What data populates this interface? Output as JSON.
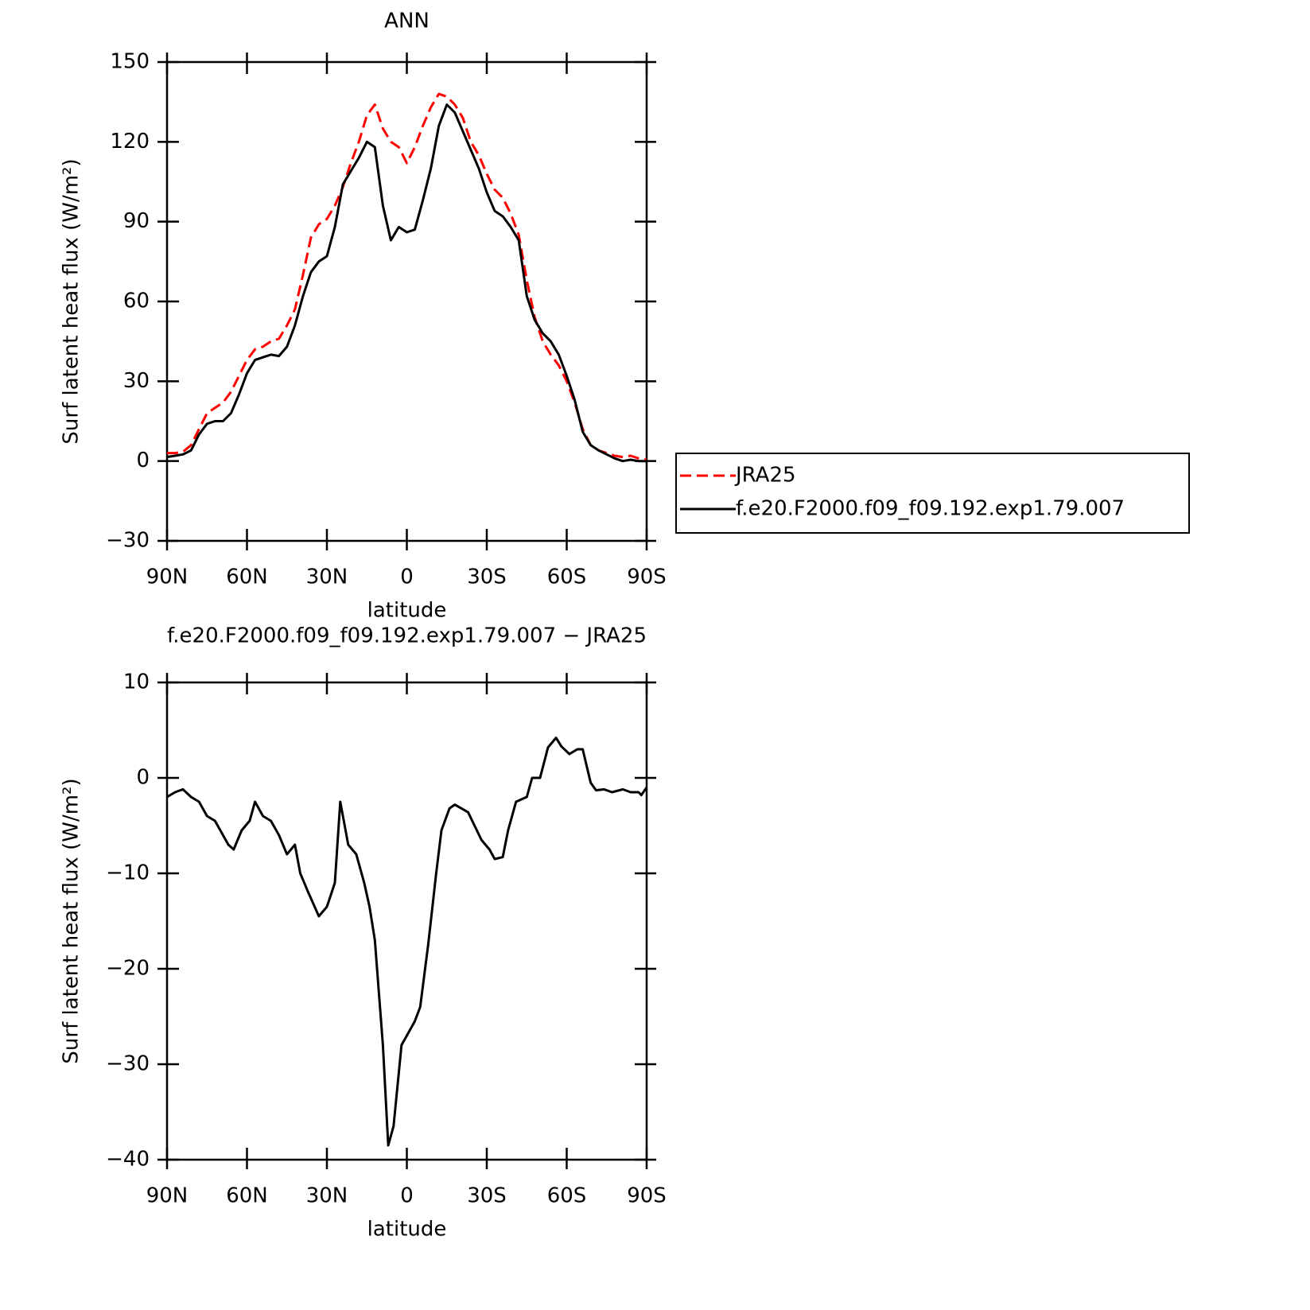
{
  "chart_data": [
    {
      "type": "line",
      "title": "ANN",
      "xlabel": "latitude",
      "ylabel": "Surf latent heat flux (W/m²)",
      "x": [
        90,
        87,
        84,
        81,
        78,
        75,
        72,
        69,
        66,
        63,
        60,
        57,
        54,
        51,
        48,
        45,
        42,
        39,
        36,
        33,
        30,
        27,
        24,
        21,
        18,
        15,
        12,
        9,
        6,
        3,
        0,
        -3,
        -6,
        -9,
        -12,
        -15,
        -18,
        -21,
        -24,
        -27,
        -30,
        -33,
        -36,
        -39,
        -42,
        -45,
        -48,
        -51,
        -54,
        -57,
        -60,
        -63,
        -66,
        -69,
        -72,
        -75,
        -78,
        -81,
        -84,
        -87,
        -90
      ],
      "series": [
        {
          "name": "JRA25",
          "color": "#ff0000",
          "dashed": true,
          "values": [
            3,
            3,
            3.5,
            6,
            12,
            18,
            20,
            22,
            26,
            32,
            38,
            42,
            43,
            45,
            46,
            51,
            57,
            70,
            84,
            89,
            91,
            96,
            103,
            112,
            120,
            130,
            134,
            125,
            120,
            118,
            112,
            118,
            126,
            133,
            138,
            137,
            134,
            129,
            120,
            115,
            108,
            102,
            99,
            93,
            85,
            68,
            54,
            45,
            40,
            36,
            30,
            22,
            12,
            6,
            4,
            3,
            2,
            1.5,
            2,
            1,
            0.5
          ]
        },
        {
          "name": "f.e20.F2000.f09_f09.192.exp1.79.007",
          "color": "#000000",
          "dashed": false,
          "values": [
            1.5,
            2,
            2.5,
            4,
            10,
            14,
            15,
            15,
            18,
            25,
            33,
            38,
            39,
            40,
            39.5,
            43,
            51,
            62,
            71,
            75,
            77,
            88,
            104,
            109,
            114,
            120,
            118,
            96,
            83,
            88,
            86,
            87,
            98,
            110,
            126,
            134,
            131,
            124,
            117,
            110,
            101,
            94,
            92,
            88,
            83,
            62,
            53,
            48,
            45,
            40,
            32,
            23,
            11,
            6,
            4,
            2.5,
            1,
            0,
            0.5,
            0,
            0
          ]
        }
      ],
      "xlim": [
        90,
        -90
      ],
      "xticks": [
        {
          "value": 90,
          "label": "90N"
        },
        {
          "value": 60,
          "label": "60N"
        },
        {
          "value": 30,
          "label": "30N"
        },
        0,
        {
          "value": -30,
          "label": "30S"
        },
        {
          "value": -60,
          "label": "60S"
        },
        {
          "value": -90,
          "label": "90S"
        }
      ],
      "ylim": [
        -30,
        150
      ],
      "yticks": [
        {
          "value": -30,
          "label": "−30"
        },
        0,
        30,
        60,
        90,
        120,
        150
      ],
      "legend": "right"
    },
    {
      "type": "line",
      "title": "f.e20.F2000.f09_f09.192.exp1.79.007 − JRA25",
      "xlabel": "latitude",
      "ylabel": "Surf latent heat flux (W/m²)",
      "x": [
        90,
        87,
        84,
        81,
        78,
        75,
        72,
        67,
        65,
        62,
        59,
        57,
        54,
        51,
        48,
        45,
        42,
        40,
        37,
        33,
        30,
        27,
        25,
        22,
        19,
        16,
        14,
        12,
        9,
        7,
        5,
        2,
        0,
        -3,
        -5,
        -8,
        -11,
        -13,
        -16,
        -18,
        -23,
        -28,
        -31,
        -33,
        -36,
        -38,
        -41,
        -45,
        -47,
        -50,
        -53,
        -56,
        -58,
        -61,
        -64,
        -66,
        -69,
        -71,
        -74,
        -77,
        -81,
        -84,
        -87,
        -88,
        -90
      ],
      "series": [
        {
          "color": "#000000",
          "dashed": false,
          "values": [
            -2,
            -1.5,
            -1.2,
            -2,
            -2.5,
            -4,
            -4.5,
            -7,
            -7.5,
            -5.5,
            -4.5,
            -2.5,
            -4,
            -4.5,
            -6,
            -8,
            -7,
            -10,
            -12,
            -14.5,
            -13.5,
            -11,
            -2.5,
            -7,
            -8,
            -11,
            -13.5,
            -17,
            -28,
            -38.5,
            -36.5,
            -28,
            -27,
            -25.5,
            -24,
            -17.5,
            -10,
            -5.5,
            -3.2,
            -2.8,
            -3.6,
            -6.5,
            -7.5,
            -8.5,
            -8.3,
            -5.5,
            -2.5,
            -2,
            0,
            0,
            3.2,
            4.2,
            3.3,
            2.5,
            3,
            3,
            -0.5,
            -1.3,
            -1.2,
            -1.5,
            -1.2,
            -1.5,
            -1.5,
            -1.8,
            -1
          ]
        }
      ],
      "xlim": [
        90,
        -90
      ],
      "xticks": [
        {
          "value": 90,
          "label": "90N"
        },
        {
          "value": 60,
          "label": "60N"
        },
        {
          "value": 30,
          "label": "30N"
        },
        0,
        {
          "value": -30,
          "label": "30S"
        },
        {
          "value": -60,
          "label": "60S"
        },
        {
          "value": -90,
          "label": "90S"
        }
      ],
      "ylim": [
        -40,
        10
      ],
      "yticks": [
        {
          "value": -40,
          "label": "−40"
        },
        {
          "value": -30,
          "label": "−30"
        },
        {
          "value": -20,
          "label": "−20"
        },
        {
          "value": -10,
          "label": "−10"
        },
        0,
        10
      ]
    }
  ]
}
